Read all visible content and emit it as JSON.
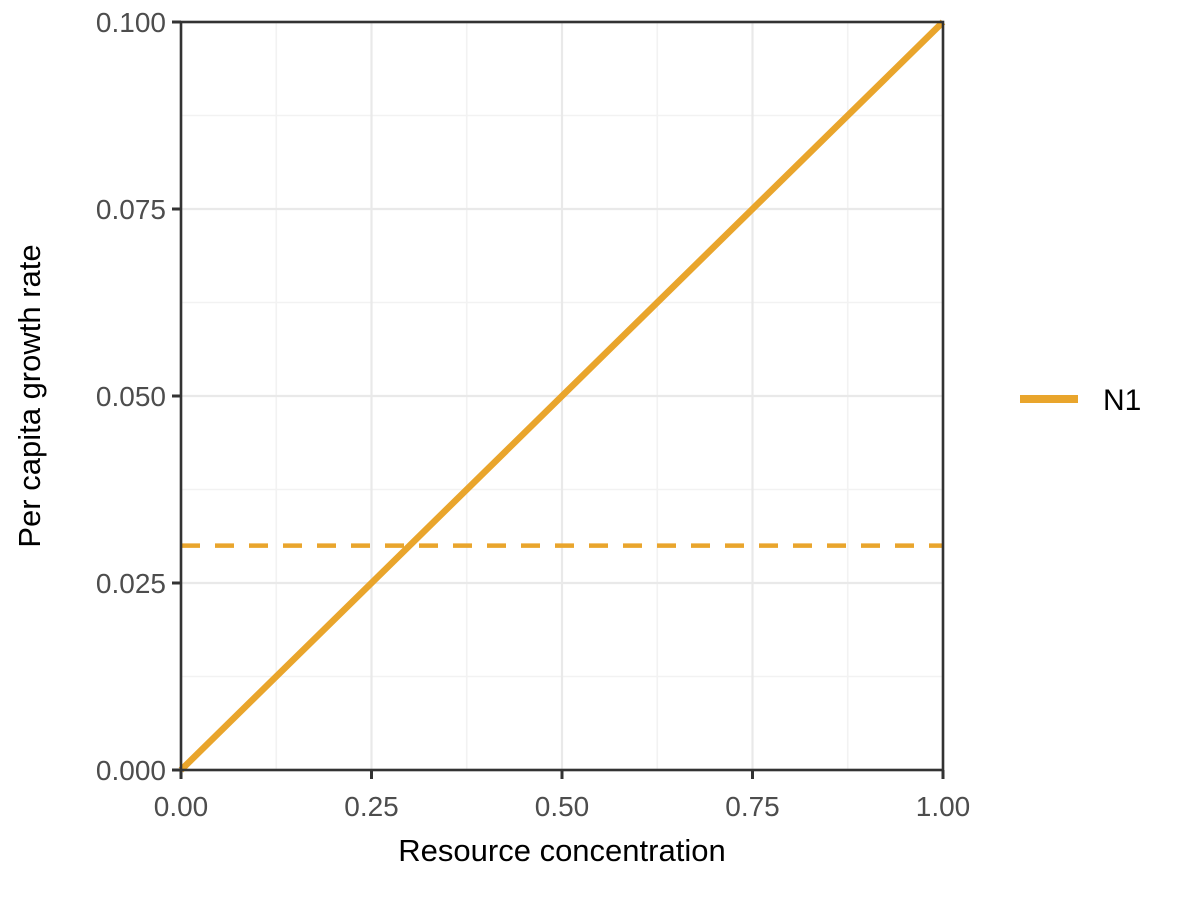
{
  "chart_data": {
    "type": "line",
    "title": "",
    "xlabel": "Resource concentration",
    "ylabel": "Per capita growth rate",
    "xlim": [
      0,
      1
    ],
    "ylim": [
      0,
      0.1
    ],
    "grid": true,
    "legend_position": "right",
    "x_ticks": {
      "values": [
        0,
        0.25,
        0.5,
        0.75,
        1
      ],
      "labels": [
        "0.00",
        "0.25",
        "0.50",
        "0.75",
        "1.00"
      ]
    },
    "y_ticks": {
      "values": [
        0,
        0.025,
        0.05,
        0.075,
        0.1
      ],
      "labels": [
        "0.000",
        "0.025",
        "0.050",
        "0.075",
        "0.100"
      ]
    },
    "x_minor": [
      0.125,
      0.375,
      0.625,
      0.875
    ],
    "y_minor": [
      0.0125,
      0.0375,
      0.0625,
      0.0875
    ],
    "series": [
      {
        "name": "N1",
        "style": "solid",
        "color": "#E9A52C",
        "x": [
          0,
          1
        ],
        "y": [
          0,
          0.1
        ]
      }
    ],
    "reference_lines": [
      {
        "type": "hline",
        "y": 0.03,
        "style": "dashed",
        "color": "#E9A52C"
      }
    ],
    "legend": {
      "entries": [
        {
          "label": "N1",
          "color": "#E9A52C",
          "line_style": "solid"
        }
      ]
    },
    "colors": {
      "accent_orange": "#E9A52C",
      "panel_border": "#333333",
      "tick": "#333333",
      "tick_label": "#4D4D4D",
      "axis_title": "#000000",
      "grid_major": "#E9E9E9",
      "grid_minor": "#F2F2F2",
      "background": "#FFFFFF"
    }
  }
}
